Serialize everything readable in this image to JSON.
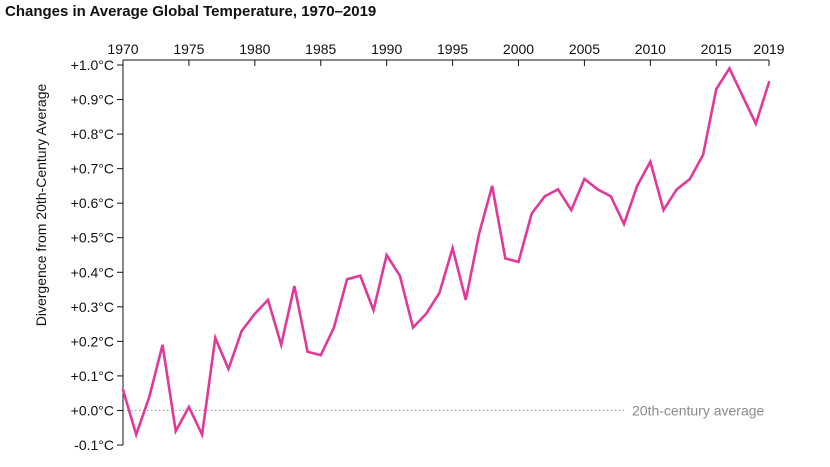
{
  "chart_data": {
    "type": "line",
    "title": "Changes in Average Global Temperature, 1970–2019",
    "ylabel": "Divergence from 20th-Century Average",
    "xlabel": "",
    "xlim": [
      1970,
      2019
    ],
    "ylim": [
      -0.1,
      1.0
    ],
    "x_ticks": [
      1970,
      1975,
      1980,
      1985,
      1990,
      1995,
      2000,
      2005,
      2010,
      2015,
      2019
    ],
    "x_tick_labels": [
      "1970",
      "1975",
      "1980",
      "1985",
      "1990",
      "1995",
      "2000",
      "2005",
      "2010",
      "2015",
      "2019"
    ],
    "x_axis_position": "top",
    "y_ticks": [
      1.0,
      0.9,
      0.8,
      0.7,
      0.6,
      0.5,
      0.4,
      0.3,
      0.2,
      0.1,
      0.0,
      -0.1
    ],
    "y_tick_labels": [
      "+1.0°C",
      "+0.9°C",
      "+0.8°C",
      "+0.7°C",
      "+0.6°C",
      "+0.5°C",
      "+0.4°C",
      "+0.3°C",
      "+0.2°C",
      "+0.1°C",
      "+0.0°C",
      "-0.1°C"
    ],
    "grid": false,
    "line_color": "#e0399a",
    "reference_line": {
      "value": 0.0,
      "label": "20th-century average",
      "style": "dotted",
      "color": "#9a9a9a"
    },
    "series": [
      {
        "x": [
          1970,
          1971,
          1972,
          1973,
          1974,
          1975,
          1976,
          1977,
          1978,
          1979,
          1980,
          1981,
          1982,
          1983,
          1984,
          1985,
          1986,
          1987,
          1988,
          1989,
          1990,
          1991,
          1992,
          1993,
          1994,
          1995,
          1996,
          1997,
          1998,
          1999,
          2000,
          2001,
          2002,
          2003,
          2004,
          2005,
          2006,
          2007,
          2008,
          2009,
          2010,
          2011,
          2012,
          2013,
          2014,
          2015,
          2016,
          2017,
          2018,
          2019
        ],
        "values": [
          0.06,
          -0.07,
          0.04,
          0.19,
          -0.06,
          0.01,
          -0.07,
          0.21,
          0.12,
          0.23,
          0.28,
          0.32,
          0.19,
          0.36,
          0.17,
          0.16,
          0.24,
          0.38,
          0.39,
          0.29,
          0.45,
          0.39,
          0.24,
          0.28,
          0.34,
          0.47,
          0.32,
          0.51,
          0.65,
          0.44,
          0.43,
          0.57,
          0.62,
          0.64,
          0.58,
          0.67,
          0.64,
          0.62,
          0.54,
          0.65,
          0.72,
          0.58,
          0.64,
          0.67,
          0.74,
          0.93,
          0.99,
          0.91,
          0.83,
          0.95
        ]
      }
    ]
  }
}
